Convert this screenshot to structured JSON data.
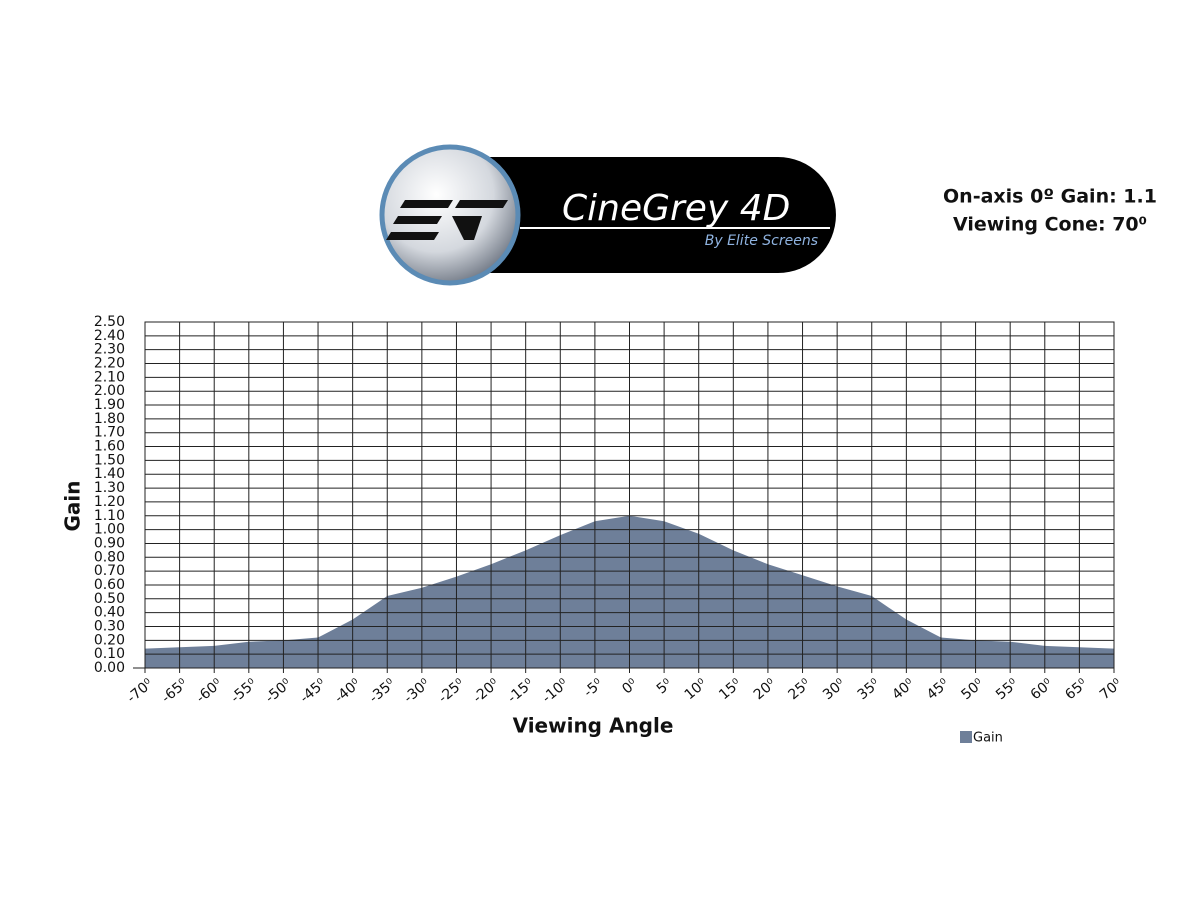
{
  "chart_data": {
    "type": "area",
    "logo": {
      "name": "CineGrey 4D",
      "tagline": "By Elite Screens"
    },
    "annotations": [
      "On-axis 0º Gain: 1.1",
      "Viewing Cone: 70⁰"
    ],
    "x_label": "Viewing Angle",
    "y_label": "Gain",
    "x": [
      -70,
      -65,
      -60,
      -55,
      -50,
      -45,
      -40,
      -35,
      -30,
      -25,
      -20,
      -15,
      -10,
      -5,
      0,
      5,
      10,
      15,
      20,
      25,
      30,
      35,
      40,
      45,
      50,
      55,
      60,
      65,
      70
    ],
    "series": [
      {
        "name": "Gain",
        "color": "#6e7f99",
        "values": [
          0.14,
          0.15,
          0.16,
          0.19,
          0.2,
          0.22,
          0.35,
          0.52,
          0.58,
          0.66,
          0.75,
          0.85,
          0.96,
          1.06,
          1.1,
          1.06,
          0.97,
          0.85,
          0.75,
          0.67,
          0.59,
          0.52,
          0.35,
          0.22,
          0.2,
          0.19,
          0.16,
          0.15,
          0.14
        ]
      }
    ],
    "xlim": [
      -70,
      70
    ],
    "xticks": [
      {
        "value": -70,
        "label": "-70⁰"
      },
      {
        "value": -65,
        "label": "-65⁰"
      },
      {
        "value": -60,
        "label": "-60⁰"
      },
      {
        "value": -55,
        "label": "-55⁰"
      },
      {
        "value": -50,
        "label": "-50⁰"
      },
      {
        "value": -45,
        "label": "-45⁰"
      },
      {
        "value": -40,
        "label": "-40⁰"
      },
      {
        "value": -35,
        "label": "-35⁰"
      },
      {
        "value": -30,
        "label": "-30⁰"
      },
      {
        "value": -25,
        "label": "-25⁰"
      },
      {
        "value": -20,
        "label": "-20⁰"
      },
      {
        "value": -15,
        "label": "-15⁰"
      },
      {
        "value": -10,
        "label": "-10⁰"
      },
      {
        "value": -5,
        "label": "-5⁰"
      },
      {
        "value": 0,
        "label": "0⁰"
      },
      {
        "value": 5,
        "label": "5⁰"
      },
      {
        "value": 10,
        "label": "10⁰"
      },
      {
        "value": 15,
        "label": "15⁰"
      },
      {
        "value": 20,
        "label": "20⁰"
      },
      {
        "value": 25,
        "label": "25⁰"
      },
      {
        "value": 30,
        "label": "30⁰"
      },
      {
        "value": 35,
        "label": "35⁰"
      },
      {
        "value": 40,
        "label": "40⁰"
      },
      {
        "value": 45,
        "label": "45⁰"
      },
      {
        "value": 50,
        "label": "50⁰"
      },
      {
        "value": 55,
        "label": "55⁰"
      },
      {
        "value": 60,
        "label": "60⁰"
      },
      {
        "value": 65,
        "label": "65⁰"
      },
      {
        "value": 70,
        "label": "70⁰"
      }
    ],
    "ylim": [
      0,
      2.5
    ],
    "yticks": [
      {
        "value": 0,
        "label": "0.00"
      },
      {
        "value": 0.1,
        "label": "0.10"
      },
      {
        "value": 0.2,
        "label": "0.20"
      },
      {
        "value": 0.3,
        "label": "0.30"
      },
      {
        "value": 0.4,
        "label": "0.40"
      },
      {
        "value": 0.5,
        "label": "0.50"
      },
      {
        "value": 0.6,
        "label": "0.60"
      },
      {
        "value": 0.7,
        "label": "0.70"
      },
      {
        "value": 0.8,
        "label": "0.80"
      },
      {
        "value": 0.9,
        "label": "0.90"
      },
      {
        "value": 1.0,
        "label": "1.00"
      },
      {
        "value": 1.1,
        "label": "1.10"
      },
      {
        "value": 1.2,
        "label": "1.20"
      },
      {
        "value": 1.3,
        "label": "1.30"
      },
      {
        "value": 1.4,
        "label": "1.40"
      },
      {
        "value": 1.5,
        "label": "1.50"
      },
      {
        "value": 1.6,
        "label": "1.60"
      },
      {
        "value": 1.7,
        "label": "1.70"
      },
      {
        "value": 1.8,
        "label": "1.80"
      },
      {
        "value": 1.9,
        "label": "1.90"
      },
      {
        "value": 2.0,
        "label": "2.00"
      },
      {
        "value": 2.1,
        "label": "2.10"
      },
      {
        "value": 2.2,
        "label": "2.20"
      },
      {
        "value": 2.3,
        "label": "2.30"
      },
      {
        "value": 2.4,
        "label": "2.40"
      },
      {
        "value": 2.5,
        "label": "2.50"
      }
    ],
    "grid": true,
    "legend": "lower right"
  }
}
